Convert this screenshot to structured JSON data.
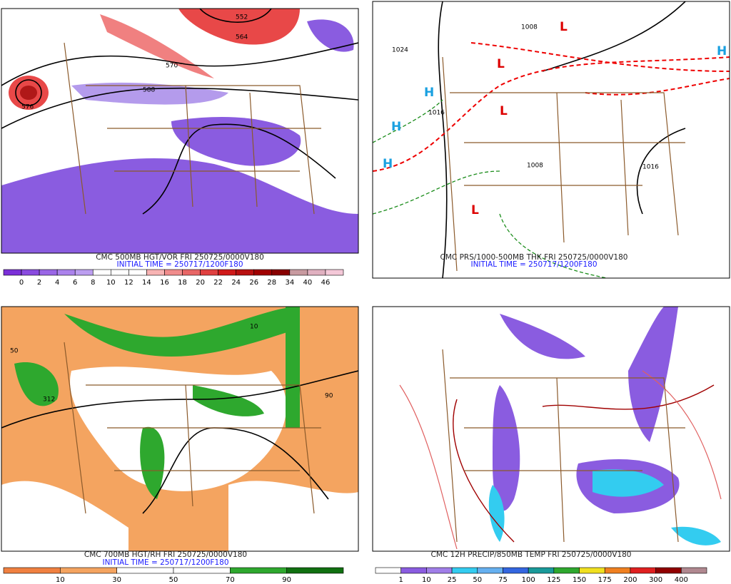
{
  "panels": [
    {
      "title": "CMC 500MB HGT/VOR FRI 250725/0000V180",
      "initial_time": "INITIAL TIME = 250717/1200F180",
      "contour_labels": [
        "552",
        "564",
        "570",
        "588",
        "576"
      ],
      "colorbar": {
        "colors": [
          "#7b2fd8",
          "#8a4be0",
          "#9a66e6",
          "#ab82ec",
          "#bc9ef0",
          "#ffffff",
          "#ffffff",
          "#ffffff",
          "#f7b3b3",
          "#f08c8c",
          "#e86666",
          "#e04040",
          "#d01a1a",
          "#b81010",
          "#a00000",
          "#880000",
          "#c89aa0",
          "#e0b0c0",
          "#f4c8d8"
        ],
        "labels": [
          "0",
          "2",
          "4",
          "6",
          "8",
          "10",
          "12",
          "14",
          "16",
          "18",
          "20",
          "22",
          "24",
          "26",
          "28",
          "34",
          "40",
          "46"
        ]
      }
    },
    {
      "title": "CMC PRS/1000-500MB THK FRI 250725/0000V180",
      "initial_time": "INITIAL TIME = 250717/1200F180",
      "contour_labels": [
        "1024",
        "1008",
        "1016",
        "1016",
        "H",
        "L"
      ]
    },
    {
      "title": "CMC 700MB HGT/RH FRI 250725/0000V180",
      "initial_time": "INITIAL TIME = 250717/1200F180",
      "contour_labels": [
        "312",
        "50",
        "10",
        "90"
      ],
      "colorbar": {
        "colors": [
          "#f08040",
          "#f4a460",
          "#ffffff",
          "#ffffff",
          "#2ea82e",
          "#107010"
        ],
        "labels": [
          "10",
          "30",
          "50",
          "70",
          "90"
        ]
      }
    },
    {
      "title": "CMC 12H PRECIP/850MB TEMP FRI 250725/0000V180",
      "colorbar": {
        "colors": [
          "#ffffff",
          "#8a5ce0",
          "#a07ee8",
          "#33ccf0",
          "#66b0f0",
          "#3366e0",
          "#1a9a9a",
          "#2ea82e",
          "#f0e020",
          "#f08020",
          "#e02020",
          "#900000",
          "#b08890"
        ],
        "labels": [
          "1",
          "10",
          "25",
          "50",
          "75",
          "100",
          "125",
          "150",
          "175",
          "200",
          "300",
          "400"
        ]
      }
    }
  ]
}
